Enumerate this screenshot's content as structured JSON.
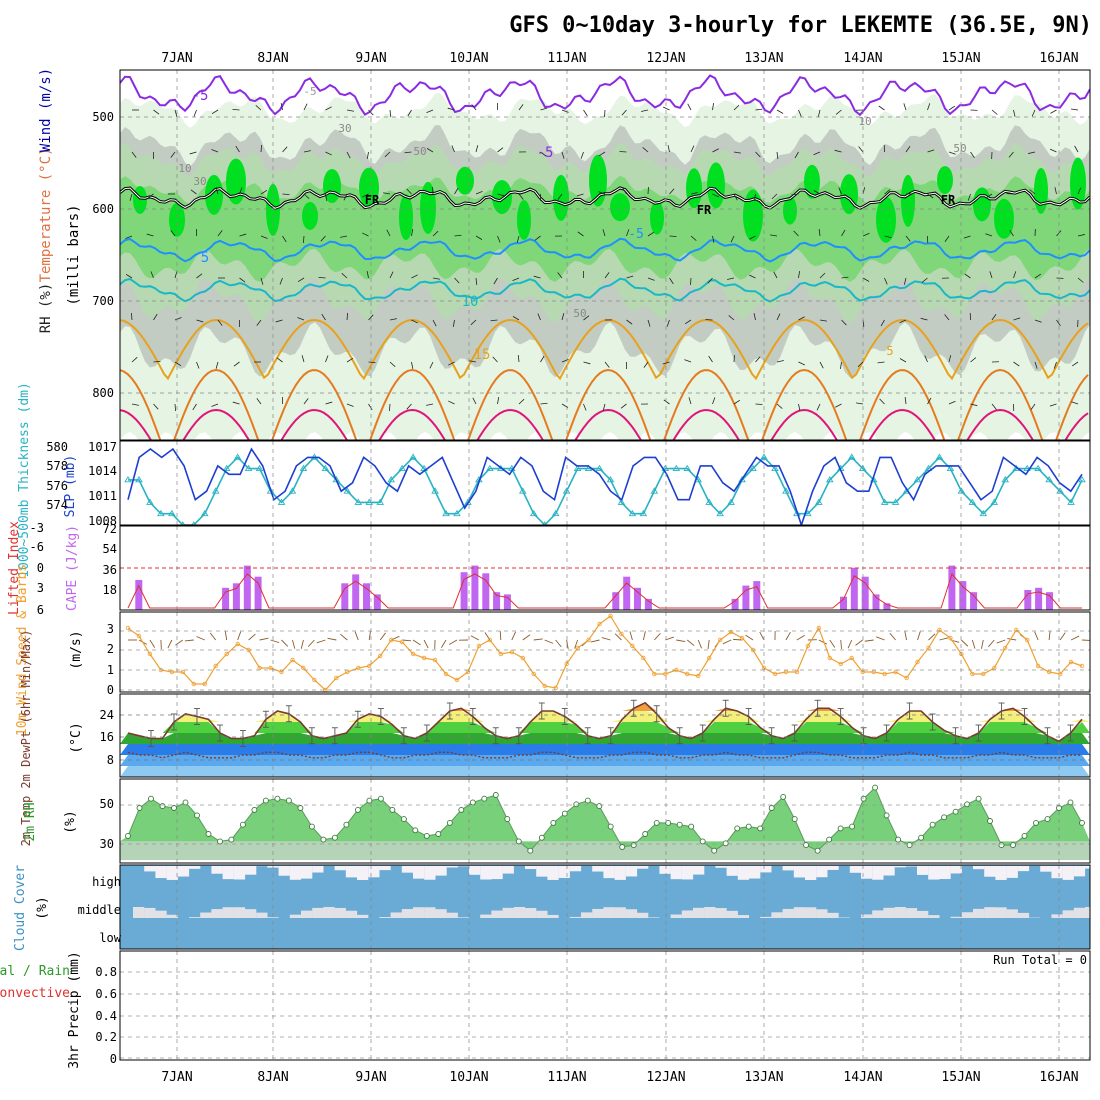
{
  "title": "GFS 0~10day 3-hourly for LEKEMTE (36.5E, 9N)",
  "dates": [
    "7JAN",
    "8JAN",
    "9JAN",
    "10JAN",
    "11JAN",
    "12JAN",
    "13JAN",
    "14JAN",
    "15JAN",
    "16JAN"
  ],
  "colors": {
    "rh_green": "#2ecc40",
    "rh_light": "#e6f4e3",
    "rh_mid": "#b7d9b1",
    "rh_gray": "#c2ccc2",
    "temp_purple": "#8a2be2",
    "temp_blue": "#1e90ff",
    "temp_cyan": "#1ab7c9",
    "temp_orange": "#e8a11c",
    "temp_dark_orange": "#e57a1e",
    "temp_magenta": "#e0157a",
    "slp_blue": "#1d3fd1",
    "thickness_cyan": "#28b3c4",
    "cape_purple": "#c066f0",
    "li_red": "#e03030",
    "wind_orange": "#f0a030",
    "cloud_blue": "#6aabd6",
    "rh2m_green": "#78d07a"
  },
  "chart_data": [
    {
      "type": "heatmap",
      "panel": "upper-air",
      "ylabel_parts": [
        "RH (%)",
        "Temperature (°C)",
        "Wind (m/s)"
      ],
      "yunit": "(milli bars)",
      "yticks": [
        "500",
        "600",
        "700",
        "800"
      ],
      "ylim": [
        850,
        450
      ],
      "contour_labels": [
        "-5",
        "-5",
        "-5",
        "-5",
        "5",
        "5",
        "10",
        "10",
        "15",
        "30",
        "30",
        "50",
        "50",
        "FR",
        "FR",
        "FR",
        "10",
        "50"
      ],
      "grid": true
    },
    {
      "type": "line",
      "panel": "slp-thickness",
      "ylabel_left": "1000~500mb Thickness (dm)",
      "ylabel_right": "SLP (mb)",
      "thickness_ticks": [
        "574",
        "576",
        "578",
        "580"
      ],
      "slp_ticks": [
        "1008",
        "1011",
        "1014",
        "1017"
      ],
      "series": [
        {
          "name": "SLP",
          "values": [
            1011,
            1016,
            1017,
            1016,
            1017,
            1015,
            1011,
            1012,
            1015,
            1014,
            1014,
            1017,
            1015,
            1011,
            1012,
            1015,
            1016,
            1016,
            1015,
            1012,
            1013,
            1016,
            1015,
            1013,
            1012,
            1015,
            1014,
            1015,
            1016,
            1013,
            1010,
            1012,
            1016,
            1015,
            1014,
            1016,
            1015,
            1012,
            1011,
            1016,
            1015,
            1015,
            1014,
            1012,
            1011,
            1015,
            1016,
            1016,
            1014,
            1011,
            1011,
            1015,
            1015,
            1013,
            1012,
            1014,
            1016,
            1015,
            1015,
            1012,
            1008,
            1012,
            1015,
            1016,
            1013,
            1012,
            1012,
            1016,
            1016,
            1013,
            1011,
            1014,
            1015,
            1015,
            1015,
            1013,
            1011,
            1012,
            1016,
            1015,
            1014,
            1016,
            1015,
            1013,
            1012,
            1014
          ]
        },
        {
          "name": "Thickness",
          "values": [
            577,
            577,
            575,
            574,
            574,
            573,
            573,
            574,
            576,
            578,
            579,
            578,
            578,
            576,
            575,
            576,
            578,
            579,
            578,
            577,
            576,
            575,
            575,
            575,
            577,
            578,
            579,
            578,
            576,
            574,
            574,
            575,
            577,
            578,
            578,
            578,
            576,
            574,
            573,
            574,
            576,
            578,
            578,
            578,
            577,
            575,
            574,
            574,
            576,
            578,
            578,
            578,
            577,
            575,
            574,
            575,
            577,
            578,
            579,
            578,
            576,
            574,
            574,
            575,
            577,
            578,
            579,
            578,
            577,
            575,
            575,
            576,
            577,
            578,
            579,
            578,
            576,
            575,
            574,
            575,
            577,
            578,
            578,
            578,
            577,
            576,
            575,
            577
          ]
        }
      ]
    },
    {
      "type": "bar",
      "panel": "cape-li",
      "ylabel_left": "Lifted Index",
      "ylabel_right": "CAPE (J/kg)",
      "li_ticks": [
        "-6",
        "-3",
        "0",
        "3",
        "6"
      ],
      "cape_ticks": [
        "18",
        "36",
        "54",
        "72"
      ],
      "cape_values": [
        0,
        27,
        0,
        0,
        0,
        0,
        0,
        0,
        0,
        20,
        24,
        40,
        30,
        0,
        0,
        0,
        0,
        0,
        0,
        0,
        24,
        32,
        24,
        14,
        0,
        0,
        0,
        0,
        0,
        0,
        0,
        34,
        40,
        33,
        16,
        14,
        0,
        0,
        0,
        0,
        0,
        0,
        0,
        0,
        0,
        16,
        30,
        20,
        10,
        0,
        0,
        0,
        0,
        0,
        0,
        0,
        10,
        22,
        26,
        0,
        0,
        0,
        0,
        0,
        0,
        0,
        12,
        38,
        30,
        14,
        6,
        0,
        0,
        0,
        0,
        0,
        40,
        26,
        16,
        0,
        0,
        0,
        0,
        18,
        20,
        16,
        0,
        0,
        0
      ]
    },
    {
      "type": "line",
      "panel": "wind10m",
      "ylabel": "10m Wind Speed & Barbs",
      "yunit": "(m/s)",
      "yticks": [
        "0",
        "1",
        "2",
        "3"
      ],
      "values": [
        3.1,
        2.7,
        1.8,
        1.0,
        0.9,
        0.9,
        0.3,
        0.3,
        1.2,
        1.8,
        2.3,
        2.0,
        1.1,
        1.1,
        0.9,
        1.5,
        1.1,
        0.5,
        0.0,
        0.6,
        0.9,
        1.1,
        1.2,
        1.7,
        2.5,
        2.4,
        1.8,
        1.6,
        1.5,
        0.8,
        0.5,
        0.9,
        2.2,
        2.5,
        1.8,
        1.9,
        1.6,
        0.8,
        0.2,
        0.1,
        1.3,
        2.1,
        2.5,
        3.3,
        3.7,
        2.8,
        2.2,
        1.6,
        0.8,
        0.8,
        1.0,
        0.8,
        0.7,
        1.6,
        2.5,
        2.9,
        2.6,
        2.0,
        1.1,
        0.8,
        0.9,
        0.9,
        2.2,
        3.1,
        1.6,
        1.3,
        1.6,
        0.9,
        0.9,
        0.8,
        0.9,
        0.6,
        1.4,
        2.1,
        3.0,
        2.6,
        1.8,
        0.8,
        0.8,
        1.1,
        2.1,
        3.0,
        2.5,
        1.2,
        0.9,
        0.8,
        1.4,
        1.2
      ]
    },
    {
      "type": "area",
      "panel": "temp2m",
      "ylabel": "2m Temp 2m DewPt (6hr Min/Max)",
      "yunit": "(°C)",
      "yticks": [
        "8",
        "16",
        "24"
      ],
      "series": [
        {
          "name": "Temp",
          "values": [
            16,
            15,
            14,
            14,
            20,
            23,
            22,
            21,
            16,
            14,
            14,
            15,
            21,
            24,
            23,
            20,
            15,
            14,
            15,
            16,
            21,
            23,
            22,
            19,
            15,
            14,
            16,
            20,
            24,
            25,
            22,
            18,
            15,
            14,
            15,
            20,
            24,
            24,
            22,
            19,
            15,
            14,
            15,
            21,
            25,
            27,
            23,
            18,
            15,
            14,
            16,
            21,
            25,
            24,
            22,
            18,
            15,
            14,
            16,
            21,
            25,
            25,
            22,
            18,
            15,
            14,
            16,
            21,
            24,
            24,
            20,
            17,
            15,
            14,
            16,
            21,
            24,
            25,
            22,
            18,
            15,
            13,
            16,
            21
          ]
        },
        {
          "name": "DewPt",
          "values": [
            9,
            8,
            8,
            7,
            8,
            9,
            8,
            7,
            7,
            7,
            8,
            8,
            9,
            9,
            8,
            8,
            7,
            7,
            8,
            8,
            9,
            9,
            8,
            7,
            7,
            8,
            8,
            9,
            9,
            8,
            8,
            7,
            7,
            7,
            8,
            8,
            9,
            9,
            8,
            7,
            7,
            7,
            8,
            8,
            9,
            9,
            8,
            8,
            7,
            7,
            8,
            8,
            9,
            8,
            8,
            7,
            7,
            7,
            8,
            9,
            9,
            8,
            8,
            7,
            7,
            7,
            8,
            8,
            9,
            8,
            8,
            7,
            7,
            7,
            8,
            8,
            9,
            8,
            8,
            7,
            7,
            7,
            8,
            8
          ]
        }
      ]
    },
    {
      "type": "area",
      "panel": "rh2m",
      "ylabel": "2m RH",
      "yunit": "(%)",
      "yticks": [
        "30",
        "50"
      ],
      "values": [
        33,
        48,
        53,
        49,
        48,
        51,
        44,
        34,
        30,
        31,
        39,
        47,
        52,
        53,
        52,
        48,
        38,
        31,
        32,
        39,
        47,
        52,
        53,
        47,
        42,
        36,
        33,
        34,
        40,
        47,
        51,
        53,
        55,
        42,
        30,
        25,
        32,
        40,
        45,
        50,
        52,
        49,
        38,
        27,
        28,
        34,
        40,
        40,
        39,
        38,
        30,
        25,
        29,
        37,
        38,
        37,
        48,
        54,
        42,
        28,
        25,
        31,
        37,
        38,
        53,
        59,
        44,
        31,
        28,
        32,
        39,
        43,
        46,
        50,
        53,
        41,
        28,
        28,
        33,
        40,
        42,
        48,
        51,
        40
      ]
    },
    {
      "type": "heatmap",
      "panel": "cloud-cover",
      "ylabel": "Cloud Cover",
      "yunit": "(%)",
      "levels": [
        "high",
        "middle",
        "low"
      ]
    },
    {
      "type": "bar",
      "panel": "precip",
      "ylabel": "3hr Precip (mm)",
      "legend_parts": [
        "Total / Rain",
        "Convective"
      ],
      "yticks": [
        "0",
        "0.2",
        "0.4",
        "0.6",
        "0.8"
      ],
      "run_total": "Run Total = 0",
      "values": []
    }
  ]
}
